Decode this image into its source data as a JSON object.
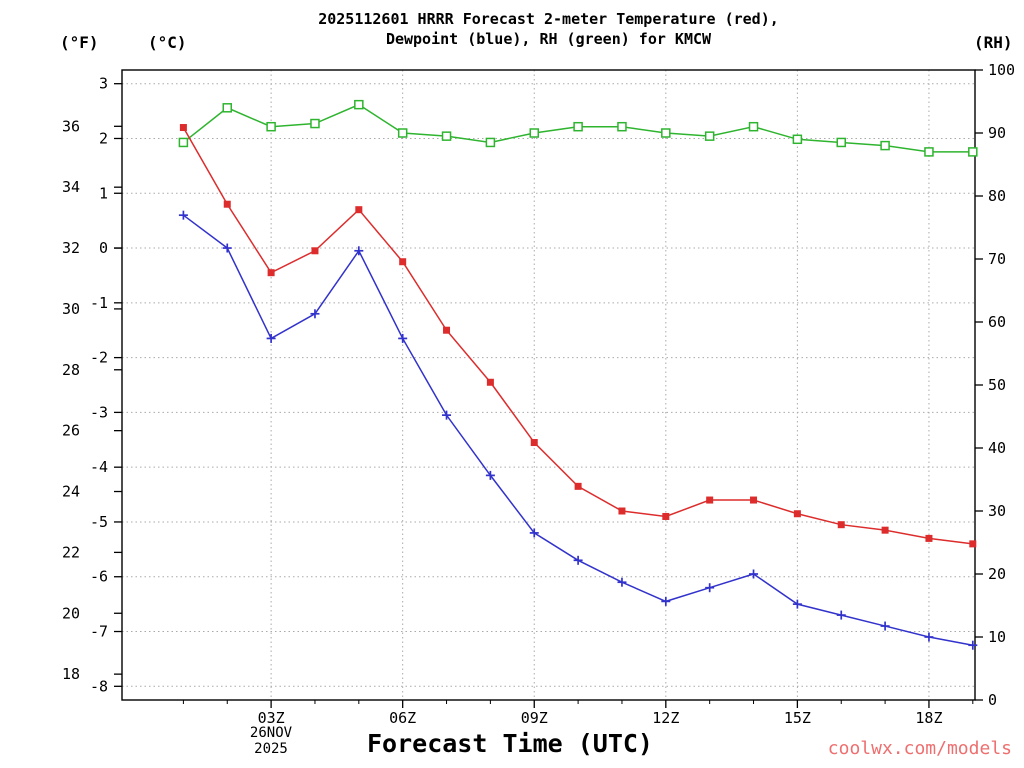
{
  "chart_data": {
    "type": "line",
    "title_line1": "2025112601 HRRR Forecast 2-meter Temperature (red),",
    "title_line2": "Dewpoint (blue), RH (green) for KMCW",
    "x_label": "Forecast Time (UTC)",
    "x_date_line1": "26NOV",
    "x_date_line2": "2025",
    "axis_headers": {
      "fahrenheit": "(°F)",
      "celsius": "(°C)",
      "rh": "(RH)"
    },
    "station": "KMCW",
    "model_run": "2025112601",
    "x_hours": [
      1,
      2,
      3,
      4,
      5,
      6,
      7,
      8,
      9,
      10,
      11,
      12,
      13,
      14,
      15,
      16,
      17,
      18,
      19
    ],
    "time_ticks": [
      {
        "hour": 3,
        "label": "03Z"
      },
      {
        "hour": 6,
        "label": "06Z"
      },
      {
        "hour": 9,
        "label": "09Z"
      },
      {
        "hour": 12,
        "label": "12Z"
      },
      {
        "hour": 15,
        "label": "15Z"
      },
      {
        "hour": 18,
        "label": "18Z"
      }
    ],
    "celsius_ticks": [
      3,
      2,
      1,
      0,
      -1,
      -2,
      -3,
      -4,
      -5,
      -6,
      -7,
      -8
    ],
    "fahrenheit_ticks": [
      36,
      34,
      32,
      30,
      28,
      26,
      24,
      22,
      20,
      18
    ],
    "rh_ticks": [
      100,
      90,
      80,
      70,
      60,
      50,
      40,
      30,
      20,
      10,
      0
    ],
    "celsius_range": [
      -8.25,
      3.25
    ],
    "rh_range": [
      0,
      100
    ],
    "x_range": [
      -0.4,
      19.05
    ],
    "grid": "dotted",
    "series": [
      {
        "id": "temperature",
        "name": "2-meter Temperature",
        "unit": "°C",
        "axis": "celsius",
        "color": "#dd2c2c",
        "marker": "filled-square",
        "values": [
          2.2,
          0.8,
          -0.45,
          -0.05,
          0.7,
          -0.25,
          -1.5,
          -2.45,
          -3.55,
          -4.35,
          -4.8,
          -4.9,
          -4.6,
          -4.6,
          -4.85,
          -5.05,
          -5.15,
          -5.3,
          -5.4
        ]
      },
      {
        "id": "dewpoint",
        "name": "Dewpoint",
        "unit": "°C",
        "axis": "celsius",
        "color": "#3232cc",
        "marker": "plus",
        "values": [
          0.6,
          0.0,
          -1.65,
          -1.2,
          -0.05,
          -1.65,
          -3.05,
          -4.15,
          -5.2,
          -5.7,
          -6.1,
          -6.45,
          -6.2,
          -5.95,
          -6.5,
          -6.7,
          -6.9,
          -7.1,
          -7.25
        ]
      },
      {
        "id": "rh",
        "name": "Relative Humidity",
        "unit": "%",
        "axis": "rh",
        "color": "#2eb42e",
        "marker": "open-square",
        "values": [
          88.5,
          94,
          91,
          91.5,
          94.5,
          90,
          89.5,
          88.5,
          90,
          91,
          91,
          90,
          89.5,
          91,
          89,
          88.5,
          88,
          87,
          87
        ]
      }
    ]
  },
  "watermark": {
    "text": "coolwx.com/models",
    "color": "#ee6f6f"
  }
}
